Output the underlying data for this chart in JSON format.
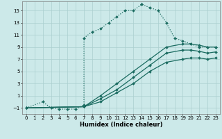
{
  "xlabel": "Humidex (Indice chaleur)",
  "xlim": [
    -0.5,
    23.5
  ],
  "ylim": [
    -2.0,
    16.5
  ],
  "yticks": [
    -1,
    1,
    3,
    5,
    7,
    9,
    11,
    13,
    15
  ],
  "xticks": [
    0,
    1,
    2,
    3,
    4,
    5,
    6,
    7,
    8,
    9,
    10,
    11,
    12,
    13,
    14,
    15,
    16,
    17,
    18,
    19,
    20,
    21,
    22,
    23
  ],
  "bg_color": "#cce9e9",
  "line_color": "#1a6b60",
  "grid_color": "#aacfcf",
  "line1_x": [
    0,
    2,
    3,
    4,
    5,
    6,
    7,
    7,
    8,
    9,
    10,
    11,
    12,
    13,
    14,
    14,
    15,
    16,
    17,
    18,
    19,
    20,
    21,
    22,
    23
  ],
  "line1_y": [
    -1,
    0,
    -1,
    -1.2,
    -1.2,
    -1.2,
    -0.5,
    10.5,
    11.5,
    12,
    13,
    14,
    15,
    15,
    16,
    16,
    15.5,
    15,
    13,
    10.5,
    10,
    9.5,
    9,
    9,
    9
  ],
  "line2_x": [
    0,
    7,
    9,
    11,
    13,
    15,
    17,
    19,
    20,
    21,
    22,
    23
  ],
  "line2_y": [
    -1,
    -0.8,
    1,
    3,
    5,
    7,
    9,
    9.5,
    9.5,
    9.3,
    9,
    9
  ],
  "line3_x": [
    0,
    7,
    9,
    11,
    13,
    15,
    17,
    19,
    20,
    21,
    22,
    23
  ],
  "line3_y": [
    -1,
    -0.8,
    0.5,
    2,
    4,
    6,
    8,
    8.5,
    8.5,
    8.3,
    8,
    8.2
  ],
  "line4_x": [
    0,
    7,
    9,
    11,
    13,
    15,
    17,
    19,
    20,
    21,
    22,
    23
  ],
  "line4_y": [
    -1,
    -0.8,
    0,
    1.5,
    3,
    5,
    6.5,
    7,
    7.2,
    7.2,
    7,
    7.2
  ]
}
